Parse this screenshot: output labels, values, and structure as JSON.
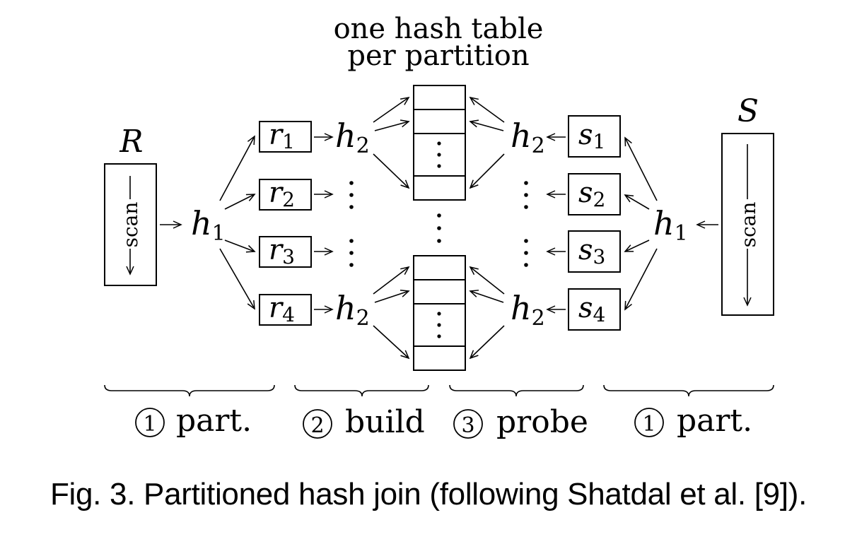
{
  "header": {
    "line1": "one hash table",
    "line2": "per partition"
  },
  "relations": {
    "left": {
      "name": "R",
      "scan_label": "scan"
    },
    "right": {
      "name": "S",
      "scan_label": "scan"
    }
  },
  "hash": {
    "h1_base": "h",
    "h1_sub": "1",
    "h2_base": "h",
    "h2_sub": "2"
  },
  "partitions_r": [
    {
      "base": "r",
      "sub": "1"
    },
    {
      "base": "r",
      "sub": "2"
    },
    {
      "base": "r",
      "sub": "3"
    },
    {
      "base": "r",
      "sub": "4"
    }
  ],
  "partitions_s": [
    {
      "base": "s",
      "sub": "1"
    },
    {
      "base": "s",
      "sub": "2"
    },
    {
      "base": "s",
      "sub": "3"
    },
    {
      "base": "s",
      "sub": "4"
    }
  ],
  "phases": [
    {
      "num": "1",
      "label": "part."
    },
    {
      "num": "2",
      "label": "build"
    },
    {
      "num": "3",
      "label": "probe"
    },
    {
      "num": "1",
      "label": "part."
    }
  ],
  "caption": "Fig. 3.  Partitioned hash join (following Shatdal et al. [9])."
}
